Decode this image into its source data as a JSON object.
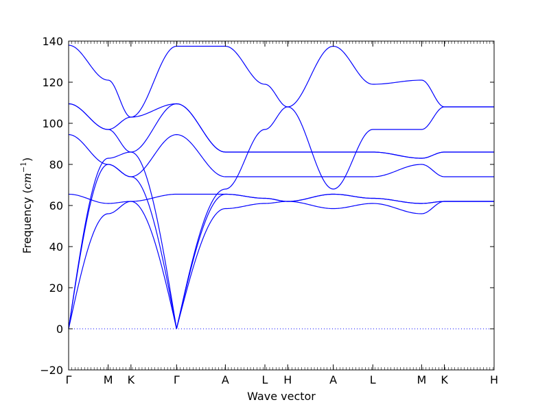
{
  "chart_data": {
    "type": "line",
    "xlabel": "Wave vector",
    "ylabel": {
      "prefix": "Frequency (",
      "unit": "cm",
      "exponent": "−1",
      "suffix": ")"
    },
    "ylim": [
      -20,
      140
    ],
    "yticks": [
      -20,
      0,
      20,
      40,
      60,
      80,
      100,
      120,
      140
    ],
    "grid": false,
    "xlim": [
      0,
      1
    ],
    "kpoints": [
      {
        "label": "Γ",
        "x": 0.0
      },
      {
        "label": "M",
        "x": 0.0929
      },
      {
        "label": "K",
        "x": 0.1465
      },
      {
        "label": "Γ",
        "x": 0.2537
      },
      {
        "label": "A",
        "x": 0.3684
      },
      {
        "label": "L",
        "x": 0.4613
      },
      {
        "label": "H",
        "x": 0.5149
      },
      {
        "label": "A",
        "x": 0.622
      },
      {
        "label": "L",
        "x": 0.7149
      },
      {
        "label": "M",
        "x": 0.8296
      },
      {
        "label": "K",
        "x": 0.8832
      },
      {
        "label": "H",
        "x": 1.0
      }
    ],
    "zero_line": {
      "y": 0,
      "style": "dotted"
    },
    "line_color": "#0000ff",
    "series": [
      {
        "values": [
          0,
          56,
          62,
          0,
          58.5,
          61,
          62,
          58.5,
          61,
          56,
          62,
          62
        ]
      },
      {
        "values": [
          0,
          80,
          74,
          0,
          65.5,
          63.5,
          62,
          65.5,
          63.5,
          61,
          62,
          62
        ]
      },
      {
        "values": [
          0,
          83,
          86,
          0,
          68,
          97,
          108,
          68,
          97,
          97,
          108,
          108
        ]
      },
      {
        "values": [
          65.5,
          61,
          62,
          65.5,
          65.5,
          63.5,
          62,
          65.5,
          63.5,
          61,
          62,
          62
        ]
      },
      {
        "values": [
          94.5,
          80,
          74,
          94.5,
          74,
          74,
          74,
          74,
          74,
          80,
          74,
          74
        ]
      },
      {
        "values": [
          109.5,
          97,
          86,
          109.5,
          86,
          86,
          86,
          86,
          86,
          83,
          86,
          86
        ]
      },
      {
        "values": [
          109.5,
          97,
          103,
          109.5,
          86,
          86,
          86,
          86,
          86,
          83,
          86,
          86
        ]
      },
      {
        "values": [
          138,
          121,
          103,
          137.5,
          137.5,
          119,
          108,
          137.5,
          119,
          121,
          108,
          108
        ]
      }
    ]
  }
}
